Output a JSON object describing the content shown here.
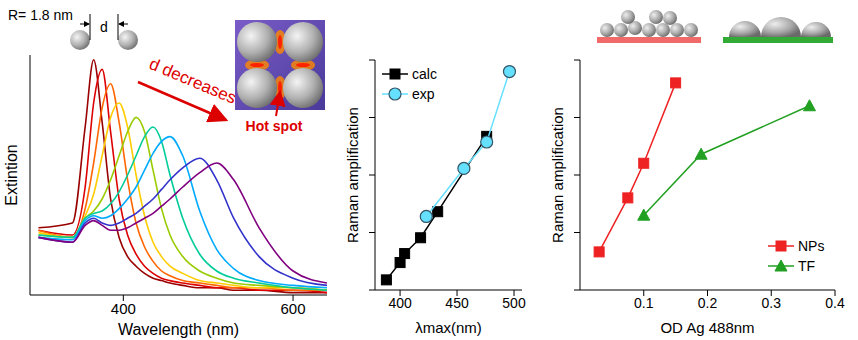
{
  "chart_data": [
    {
      "type": "line",
      "x_label": "Wavelength (nm)",
      "y_label": "Extintion",
      "annotations": [
        "R= 1.8 nm",
        "d",
        "d decreases",
        "Hot spot"
      ],
      "tick_labels": "x",
      "xlim": [
        290,
        640
      ],
      "xticks": [
        400,
        600
      ],
      "ylim": [
        0,
        1
      ],
      "x": [
        300,
        340,
        355,
        365,
        375,
        385,
        395,
        405,
        415,
        425,
        435,
        445,
        455,
        470,
        490,
        510,
        530,
        560,
        600,
        640
      ],
      "series": [
        {
          "color": "#990000",
          "values": [
            0.28,
            0.3,
            0.7,
            0.98,
            0.72,
            0.4,
            0.24,
            0.16,
            0.12,
            0.09,
            0.07,
            0.06,
            0.05,
            0.04,
            0.03,
            0.03,
            0.02,
            0.02,
            0.01,
            0.01
          ]
        },
        {
          "color": "#dd0000",
          "values": [
            0.27,
            0.25,
            0.45,
            0.8,
            0.94,
            0.68,
            0.4,
            0.25,
            0.17,
            0.12,
            0.09,
            0.07,
            0.06,
            0.05,
            0.04,
            0.03,
            0.03,
            0.02,
            0.02,
            0.01
          ]
        },
        {
          "color": "#ff6600",
          "values": [
            0.27,
            0.24,
            0.36,
            0.55,
            0.78,
            0.88,
            0.72,
            0.48,
            0.3,
            0.2,
            0.14,
            0.1,
            0.08,
            0.06,
            0.05,
            0.04,
            0.03,
            0.03,
            0.02,
            0.02
          ]
        },
        {
          "color": "#ffcc00",
          "values": [
            0.26,
            0.24,
            0.33,
            0.42,
            0.58,
            0.74,
            0.8,
            0.7,
            0.5,
            0.33,
            0.22,
            0.16,
            0.12,
            0.09,
            0.06,
            0.05,
            0.04,
            0.03,
            0.03,
            0.02
          ]
        },
        {
          "color": "#99cc00",
          "values": [
            0.25,
            0.24,
            0.32,
            0.35,
            0.4,
            0.48,
            0.58,
            0.68,
            0.74,
            0.68,
            0.52,
            0.36,
            0.25,
            0.16,
            0.1,
            0.07,
            0.05,
            0.04,
            0.03,
            0.02
          ]
        },
        {
          "color": "#00cc99",
          "values": [
            0.25,
            0.24,
            0.32,
            0.34,
            0.35,
            0.38,
            0.43,
            0.5,
            0.58,
            0.66,
            0.7,
            0.64,
            0.5,
            0.32,
            0.17,
            0.1,
            0.07,
            0.05,
            0.03,
            0.02
          ]
        },
        {
          "color": "#00aaff",
          "values": [
            0.24,
            0.23,
            0.31,
            0.33,
            0.32,
            0.33,
            0.36,
            0.4,
            0.45,
            0.52,
            0.59,
            0.64,
            0.66,
            0.58,
            0.35,
            0.19,
            0.11,
            0.06,
            0.04,
            0.03
          ]
        },
        {
          "color": "#3333cc",
          "values": [
            0.24,
            0.22,
            0.3,
            0.32,
            0.3,
            0.29,
            0.3,
            0.32,
            0.34,
            0.37,
            0.4,
            0.44,
            0.48,
            0.53,
            0.57,
            0.48,
            0.32,
            0.16,
            0.07,
            0.04
          ]
        },
        {
          "color": "#800080",
          "values": [
            0.24,
            0.22,
            0.29,
            0.31,
            0.29,
            0.27,
            0.27,
            0.28,
            0.3,
            0.32,
            0.34,
            0.37,
            0.4,
            0.45,
            0.51,
            0.55,
            0.48,
            0.28,
            0.1,
            0.05
          ]
        }
      ]
    },
    {
      "type": "scatter",
      "x_label": "λmax(nm)",
      "y_label": "Raman amplification",
      "log": "y",
      "tick_labels": "x",
      "legend": "upper left",
      "line_style": "solid",
      "xlim": [
        378,
        507
      ],
      "xticks": [
        400,
        450,
        500
      ],
      "ylim": [
        1,
        10000
      ],
      "yticks": [
        1,
        10,
        100,
        1000,
        10000
      ],
      "series": [
        {
          "name": "calc",
          "color": "#000000",
          "marker": "square",
          "x": [
            388,
            400,
            404,
            418,
            433,
            476
          ],
          "values": [
            1.5,
            3.0,
            4.3,
            8.1,
            23,
            470
          ]
        },
        {
          "name": "exp",
          "color": "#66e0ff",
          "marker": "circle",
          "x": [
            423,
            456,
            476,
            496
          ],
          "values": [
            19,
            130,
            375,
            6300
          ]
        }
      ]
    },
    {
      "type": "scatter",
      "x_label": "OD Ag 488nm",
      "y_label": "Raman amplification",
      "log": "y",
      "tick_labels": "x",
      "legend": "lower right",
      "line_style": "solid",
      "xlim": [
        0,
        0.4
      ],
      "xticks": [
        0.1,
        0.2,
        0.3,
        0.4
      ],
      "ylim": [
        1,
        10000
      ],
      "yticks": [
        1,
        10,
        100,
        1000,
        10000
      ],
      "series": [
        {
          "name": "NPs",
          "color": "#ee2222",
          "marker": "square",
          "x": [
            0.03,
            0.075,
            0.1,
            0.15
          ],
          "values": [
            4.6,
            40,
            160,
            4000
          ]
        },
        {
          "name": "TF",
          "color": "#22a022",
          "marker": "triangle",
          "x": [
            0.1,
            0.19,
            0.36
          ],
          "values": [
            20,
            230,
            1600
          ]
        }
      ]
    }
  ]
}
